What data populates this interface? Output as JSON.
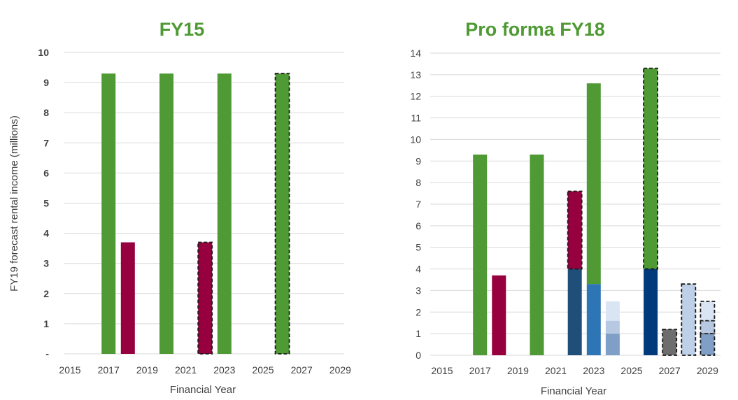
{
  "chart_data": [
    {
      "type": "bar",
      "stacked": true,
      "title": "FY15",
      "xlabel": "Financial Year",
      "ylabel": "FY19 forecast rental income (millions)",
      "ylim": [
        0,
        10
      ],
      "y_ticks": [
        "-",
        "1",
        "2",
        "3",
        "4",
        "5",
        "6",
        "7",
        "8",
        "9",
        "10"
      ],
      "x_ticks": [
        "2015",
        "2017",
        "2019",
        "2021",
        "2023",
        "2025",
        "2027",
        "2029"
      ],
      "x_range": [
        2015,
        2029
      ],
      "grid": true,
      "legend": "none",
      "title_color": "#4f9a34",
      "bars": [
        {
          "year": 2017,
          "segments": [
            {
              "value": 9.3,
              "color": "#4f9a34",
              "dashed": false
            }
          ]
        },
        {
          "year": 2018,
          "segments": [
            {
              "value": 3.7,
              "color": "#96003e",
              "dashed": false
            }
          ]
        },
        {
          "year": 2020,
          "segments": [
            {
              "value": 9.3,
              "color": "#4f9a34",
              "dashed": false
            }
          ]
        },
        {
          "year": 2022,
          "segments": [
            {
              "value": 3.7,
              "color": "#96003e",
              "dashed": true
            }
          ]
        },
        {
          "year": 2023,
          "segments": [
            {
              "value": 9.3,
              "color": "#4f9a34",
              "dashed": false
            }
          ]
        },
        {
          "year": 2026,
          "segments": [
            {
              "value": 9.3,
              "color": "#4f9a34",
              "dashed": true
            }
          ]
        }
      ]
    },
    {
      "type": "bar",
      "stacked": true,
      "title": "Pro forma FY18",
      "xlabel": "Financial Year",
      "ylabel": "",
      "ylim": [
        0,
        14
      ],
      "y_ticks": [
        "0",
        "1",
        "2",
        "3",
        "4",
        "5",
        "6",
        "7",
        "8",
        "9",
        "10",
        "11",
        "12",
        "13",
        "14"
      ],
      "x_ticks": [
        "2015",
        "2017",
        "2019",
        "2021",
        "2023",
        "2025",
        "2027",
        "2029"
      ],
      "x_range": [
        2015,
        2029
      ],
      "grid": true,
      "legend": "none",
      "title_color": "#4f9a34",
      "bars": [
        {
          "year": 2017,
          "segments": [
            {
              "value": 9.3,
              "color": "#4f9a34",
              "dashed": false
            }
          ]
        },
        {
          "year": 2018,
          "segments": [
            {
              "value": 3.7,
              "color": "#96003e",
              "dashed": false
            }
          ]
        },
        {
          "year": 2020,
          "segments": [
            {
              "value": 9.3,
              "color": "#4f9a34",
              "dashed": false
            }
          ]
        },
        {
          "year": 2022,
          "segments": [
            {
              "value": 4.0,
              "color": "#1f4e79",
              "dashed": false
            },
            {
              "value": 3.6,
              "color": "#96003e",
              "dashed": true
            }
          ]
        },
        {
          "year": 2023,
          "segments": [
            {
              "value": 3.3,
              "color": "#2e75b6",
              "dashed": false
            },
            {
              "value": 9.3,
              "color": "#4f9a34",
              "dashed": false
            }
          ]
        },
        {
          "year": 2024,
          "segments": [
            {
              "value": 1.0,
              "color": "#7f9fc6",
              "dashed": false
            },
            {
              "value": 0.6,
              "color": "#b7c9e2",
              "dashed": false
            },
            {
              "value": 0.9,
              "color": "#dae5f3",
              "dashed": false
            }
          ]
        },
        {
          "year": 2026,
          "segments": [
            {
              "value": 4.0,
              "color": "#003a7a",
              "dashed": false
            },
            {
              "value": 9.3,
              "color": "#4f9a34",
              "dashed": true
            }
          ]
        },
        {
          "year": 2027,
          "segments": [
            {
              "value": 1.2,
              "color": "#6d6d6d",
              "dashed": true
            }
          ]
        },
        {
          "year": 2028,
          "segments": [
            {
              "value": 3.3,
              "color": "#bdd0e7",
              "dashed": true
            }
          ]
        },
        {
          "year": 2029,
          "segments": [
            {
              "value": 1.0,
              "color": "#7f9fc6",
              "dashed": true
            },
            {
              "value": 0.6,
              "color": "#b7c9e2",
              "dashed": true
            },
            {
              "value": 0.9,
              "color": "#dae5f3",
              "dashed": true
            }
          ]
        }
      ]
    }
  ]
}
